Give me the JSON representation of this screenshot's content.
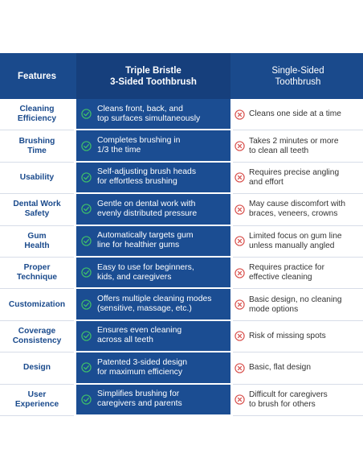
{
  "header": {
    "features": "Features",
    "col2_line1": "Triple Bristle",
    "col2_line2": "3-Sided Toothbrush",
    "col3_line1": "Single-Sided",
    "col3_line2": "Toothbrush"
  },
  "icons": {
    "check": "check-circle-icon",
    "cross": "x-circle-icon"
  },
  "colors": {
    "header_bg": "#1a4a8c",
    "mid_col_bg": "#1b4d92",
    "check": "#3fbf6a",
    "cross": "#d9534f"
  },
  "rows": [
    {
      "feature": [
        "Cleaning",
        "Efficiency"
      ],
      "triple": [
        "Cleans front, back, and",
        "top surfaces simultaneously"
      ],
      "single": [
        "Cleans one side at a time"
      ]
    },
    {
      "feature": [
        "Brushing",
        "Time"
      ],
      "triple": [
        "Completes brushing in",
        "1/3 the time"
      ],
      "single": [
        "Takes 2 minutes or more",
        "to clean all teeth"
      ]
    },
    {
      "feature": [
        "Usability"
      ],
      "triple": [
        "Self-adjusting brush heads",
        "for effortless brushing"
      ],
      "single": [
        "Requires precise angling",
        "and effort"
      ]
    },
    {
      "feature": [
        "Dental Work",
        "Safety"
      ],
      "triple": [
        "Gentle on dental work with",
        "evenly distributed pressure"
      ],
      "single": [
        "May cause discomfort with",
        "braces, veneers, crowns"
      ]
    },
    {
      "feature": [
        "Gum",
        "Health"
      ],
      "triple": [
        "Automatically targets gum",
        "line for healthier gums"
      ],
      "single": [
        "Limited focus on gum line",
        "unless manually angled"
      ]
    },
    {
      "feature": [
        "Proper",
        "Technique"
      ],
      "triple": [
        "Easy to use for beginners,",
        "kids, and caregivers"
      ],
      "single": [
        "Requires practice for",
        "effective cleaning"
      ]
    },
    {
      "feature": [
        "Customization"
      ],
      "triple": [
        "Offers multiple cleaning modes",
        "(sensitive, massage, etc.)"
      ],
      "single": [
        "Basic design, no cleaning",
        "mode options"
      ]
    },
    {
      "feature": [
        "Coverage",
        "Consistency"
      ],
      "triple": [
        "Ensures even cleaning",
        "across all teeth"
      ],
      "single": [
        "Risk of missing spots"
      ]
    },
    {
      "feature": [
        "Design"
      ],
      "triple": [
        "Patented 3-sided design",
        "for maximum efficiency"
      ],
      "single": [
        "Basic, flat design"
      ]
    },
    {
      "feature": [
        "User",
        "Experience"
      ],
      "triple": [
        "Simplifies brushing for",
        "caregivers and parents"
      ],
      "single": [
        "Difficult for caregivers",
        "to brush for others"
      ]
    }
  ]
}
